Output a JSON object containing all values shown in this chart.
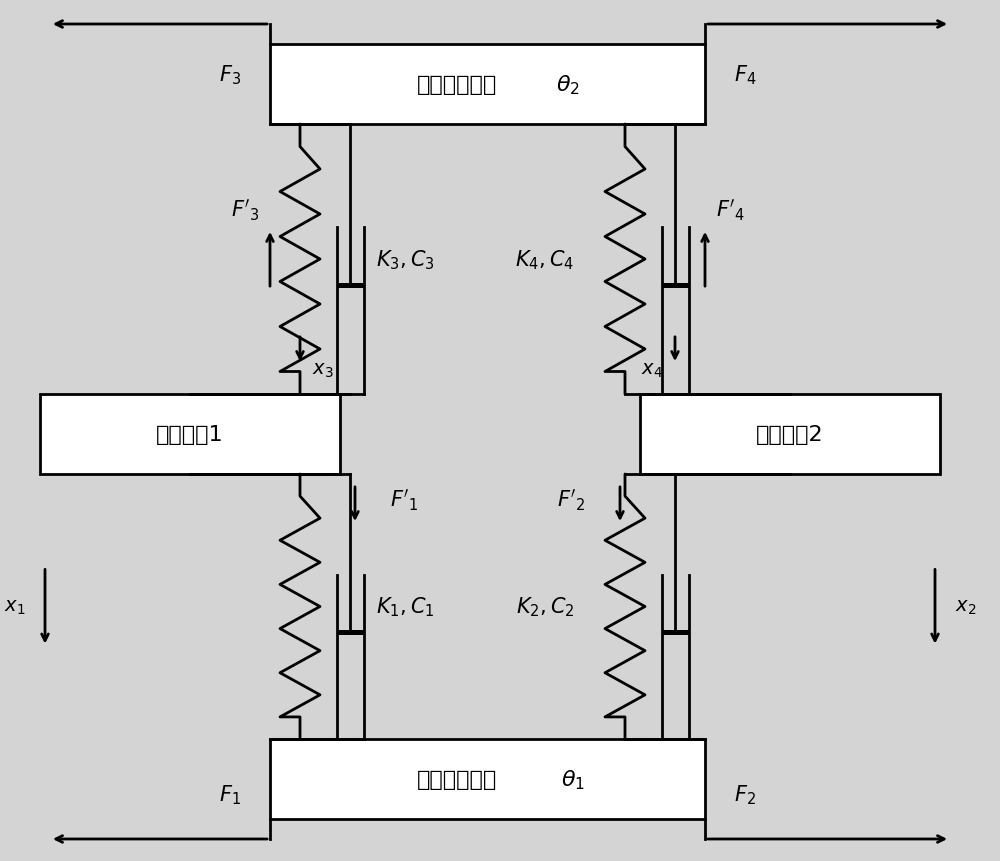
{
  "bg_color": "#d4d4d4",
  "box_color": "#ffffff",
  "line_color": "#000000",
  "lw": 2.0,
  "top_box_label": "关节输出法兰",
  "bottom_box_label": "齿轮头输出轴",
  "left_pulley_label": "动滑轮组1",
  "right_pulley_label": "动滑轮组2"
}
